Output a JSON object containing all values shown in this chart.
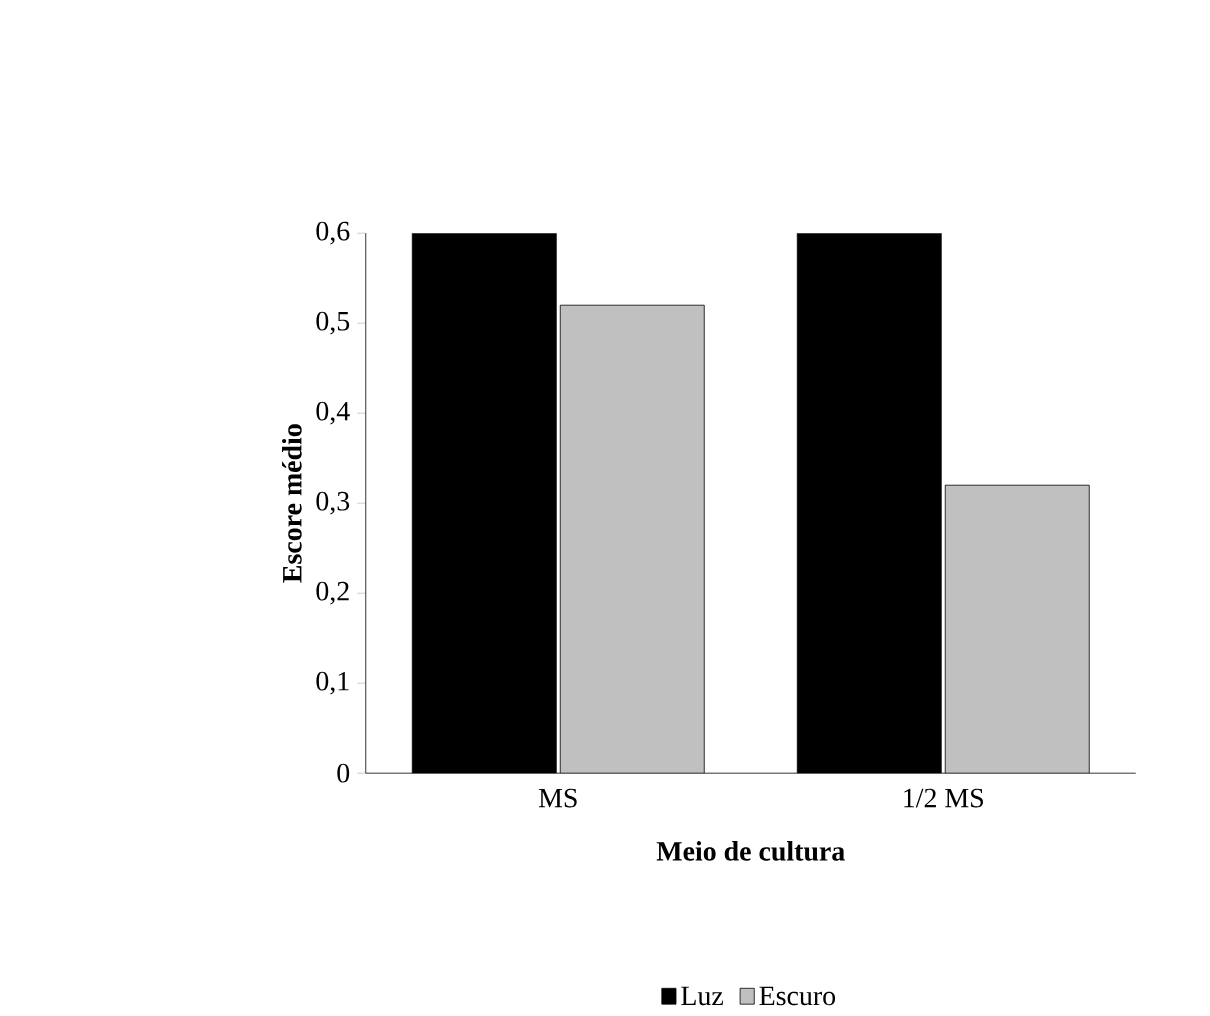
{
  "chart_data": {
    "type": "bar",
    "xlabel": "Meio de cultura",
    "ylabel": "Escore médio",
    "categories": [
      "MS",
      "1/2 MS"
    ],
    "series": [
      {
        "name": "Luz",
        "color": "#000000",
        "values": [
          0.6,
          0.6
        ]
      },
      {
        "name": "Escuro",
        "color": "#c0c0c0",
        "values": [
          0.52,
          0.32
        ]
      }
    ],
    "ylim": [
      0,
      0.6
    ],
    "yticks": [
      {
        "value": 0,
        "label": "0"
      },
      {
        "value": 0.1,
        "label": "0,1"
      },
      {
        "value": 0.2,
        "label": "0,2"
      },
      {
        "value": 0.3,
        "label": "0,3"
      },
      {
        "value": 0.4,
        "label": "0,4"
      },
      {
        "value": 0.5,
        "label": "0,5"
      },
      {
        "value": 0.6,
        "label": "0,6"
      }
    ],
    "grid": false,
    "legend": "bottom"
  }
}
